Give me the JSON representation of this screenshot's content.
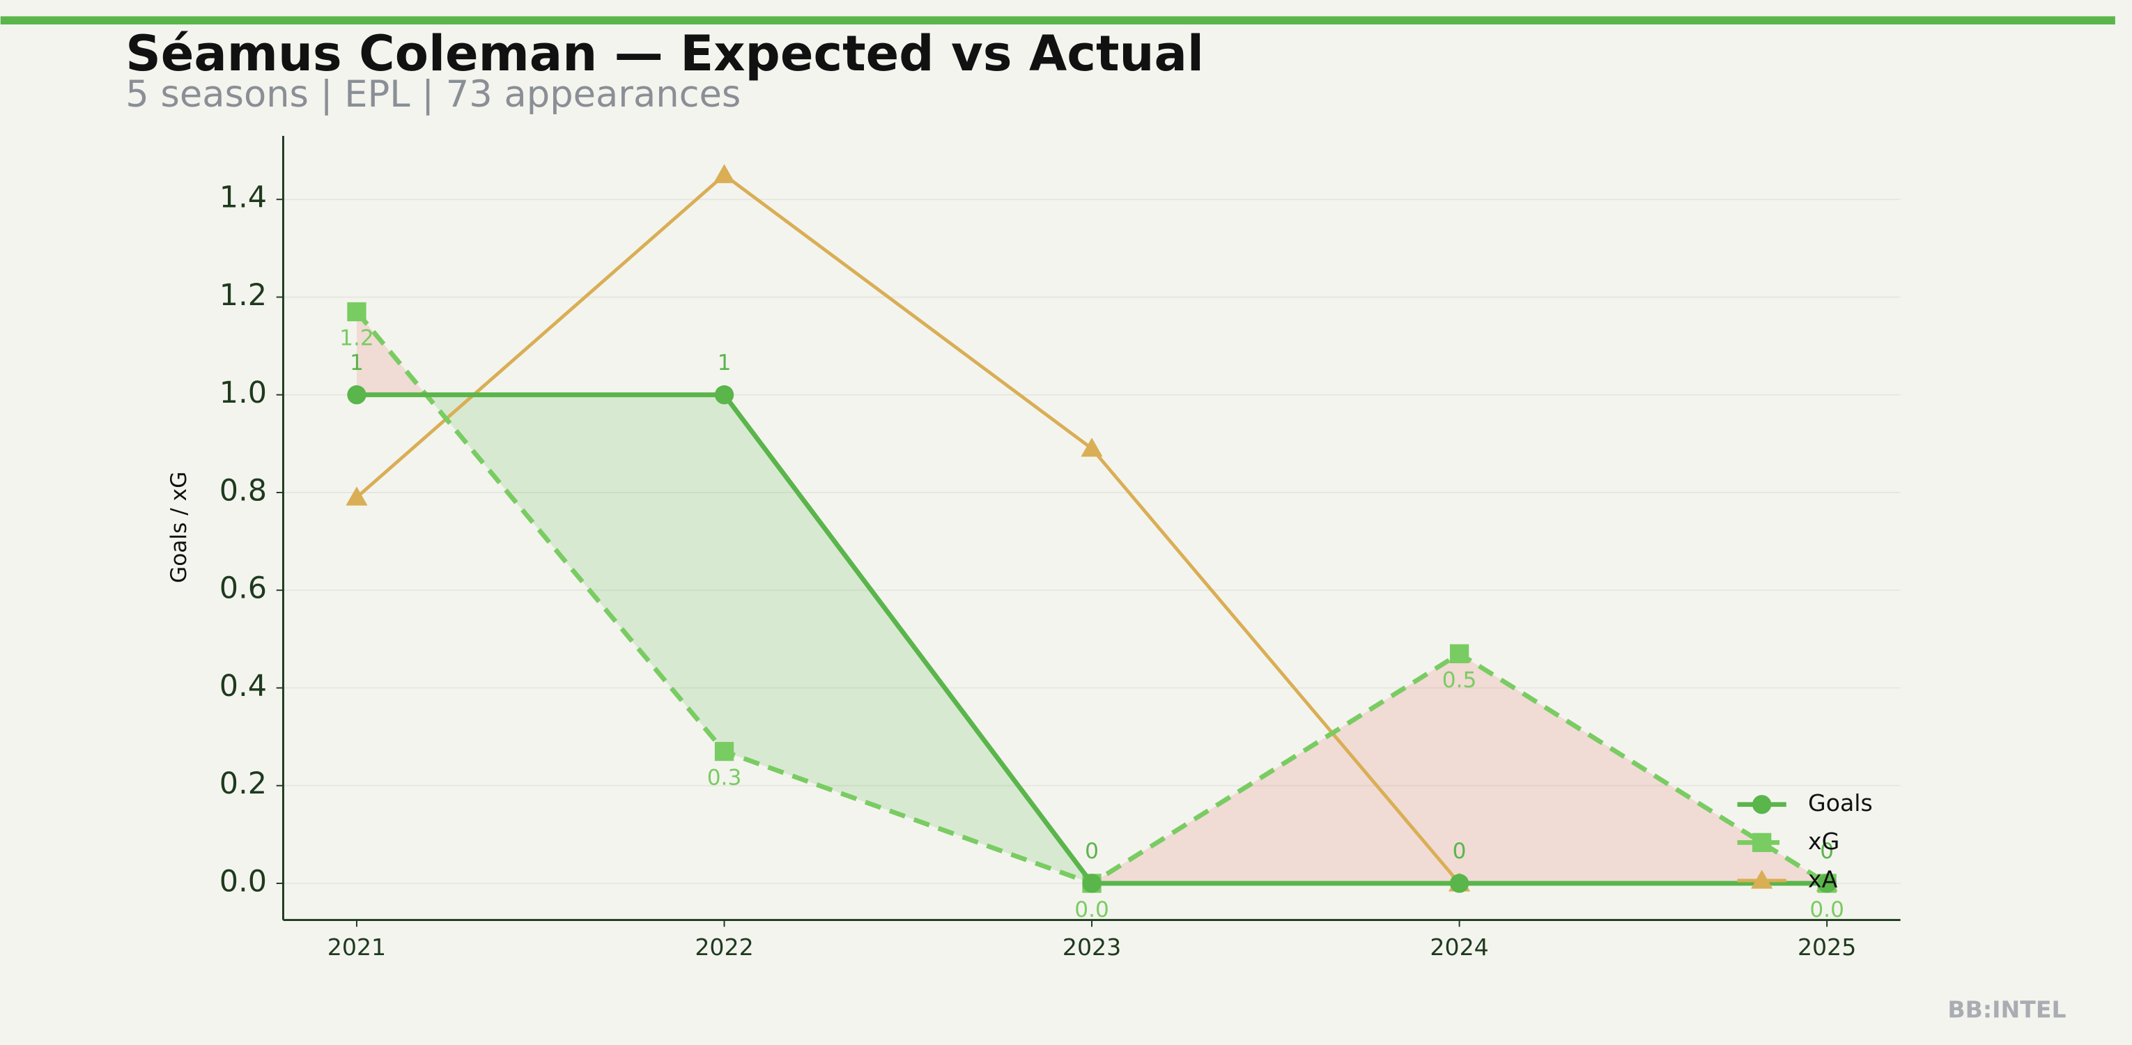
{
  "chart_data": {
    "type": "line",
    "title": "Séamus Coleman — Expected vs Actual",
    "subtitle": "5 seasons | EPL | 73 appearances",
    "y_label": "Goals / xG",
    "footer": "BB:INTEL",
    "x": [
      2021,
      2022,
      2023,
      2024,
      2025
    ],
    "xlim": [
      2020.8,
      2025.2
    ],
    "xticks": [
      2021,
      2022,
      2023,
      2024,
      2025
    ],
    "ylim": [
      -0.075,
      1.53
    ],
    "yticks": [
      {
        "value": 0,
        "label": "0.0"
      },
      {
        "value": 0.2,
        "label": "0.2"
      },
      {
        "value": 0.4,
        "label": "0.4"
      },
      {
        "value": 0.6,
        "label": "0.6"
      },
      {
        "value": 0.8,
        "label": "0.8"
      },
      {
        "value": 1.0,
        "label": "1.0"
      },
      {
        "value": 1.2,
        "label": "1.2"
      },
      {
        "value": 1.4,
        "label": "1.4"
      }
    ],
    "grid": true,
    "legend": "lower right",
    "series": [
      {
        "name": "Goals",
        "color": "#5ab54b",
        "values": [
          1,
          1,
          0,
          0,
          0
        ]
      },
      {
        "name": "xG",
        "color": "#79cc62",
        "values": [
          1.17,
          0.27,
          0,
          0.47,
          0
        ],
        "value_labels": [
          "1.2",
          "0.3",
          "0.0",
          "0.5",
          "0.0"
        ]
      },
      {
        "name": "xA",
        "color": "#d9ae55",
        "values": [
          0.79,
          1.45,
          0.89,
          0,
          0
        ]
      }
    ]
  }
}
